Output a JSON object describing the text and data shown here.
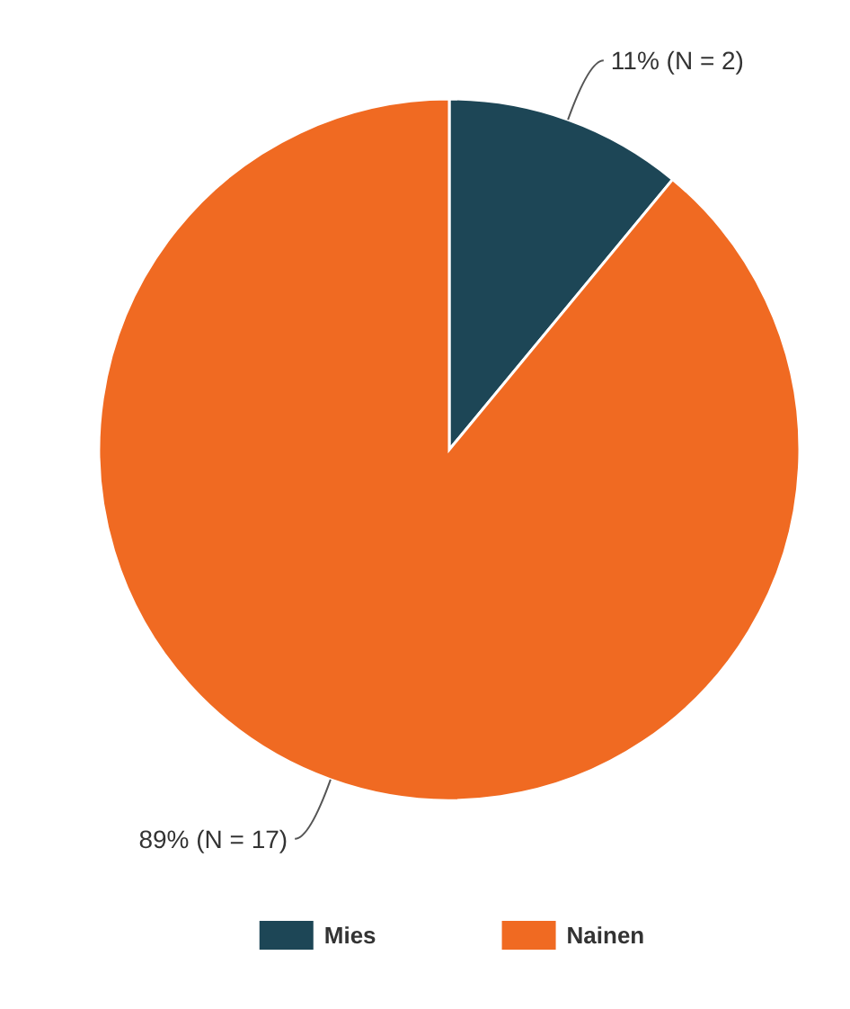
{
  "chart_data": {
    "type": "pie",
    "categories": [
      "Mies",
      "Nainen"
    ],
    "values": [
      11,
      89
    ],
    "colors": [
      "#1d4656",
      "#f06a22"
    ],
    "value_labels": [
      "11% (N = 2)",
      "89% (N = 17)"
    ],
    "legend": "bottom"
  }
}
